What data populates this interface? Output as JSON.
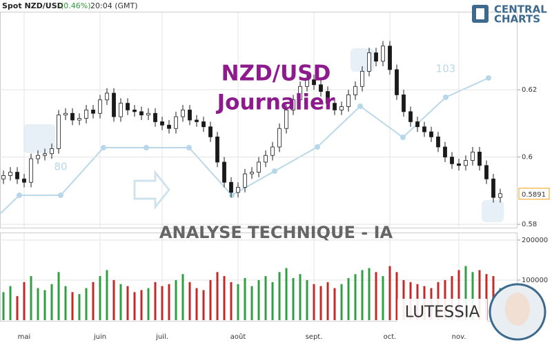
{
  "header": {
    "symbol": "Spot NZD/USD",
    "change": "(0.46%)",
    "time": "20:04 (GMT)"
  },
  "logo": {
    "line1": "CENTRAL",
    "line2": "CHARTS"
  },
  "banner": "ANALYSE TECHNIQUE - IA",
  "brand": "LUTESSIA",
  "watermark": {
    "labels": [
      "80",
      "103"
    ]
  },
  "chart_data": [
    {
      "type": "candlestick",
      "title": "NZD/USD",
      "subtitle": "Journalier",
      "open": [
        0.5935,
        0.5945,
        0.5955,
        0.5935,
        0.5925,
        0.5995,
        0.6005,
        0.601,
        0.6025,
        0.6125,
        0.613,
        0.611,
        0.6115,
        0.614,
        0.613,
        0.617,
        0.619,
        0.612,
        0.616,
        0.614,
        0.6135,
        0.6125,
        0.613,
        0.6105,
        0.6095,
        0.6085,
        0.612,
        0.614,
        0.611,
        0.6105,
        0.609,
        0.606,
        0.5985,
        0.5925,
        0.5895,
        0.591,
        0.595,
        0.5955,
        0.5985,
        0.6005,
        0.603,
        0.6085,
        0.614,
        0.617,
        0.621,
        0.623,
        0.6215,
        0.6195,
        0.616,
        0.614,
        0.615,
        0.6185,
        0.621,
        0.6255,
        0.631,
        0.6285,
        0.633,
        0.626,
        0.6185,
        0.6135,
        0.6105,
        0.609,
        0.6075,
        0.606,
        0.603,
        0.6,
        0.598,
        0.5975,
        0.599,
        0.6015,
        0.5975,
        0.5935,
        0.588
      ],
      "high": [
        0.596,
        0.597,
        0.597,
        0.595,
        0.601,
        0.602,
        0.6025,
        0.604,
        0.614,
        0.6145,
        0.6145,
        0.613,
        0.6155,
        0.6155,
        0.6185,
        0.6205,
        0.6205,
        0.6175,
        0.6175,
        0.6155,
        0.615,
        0.6145,
        0.6145,
        0.612,
        0.611,
        0.6135,
        0.6155,
        0.6155,
        0.6125,
        0.612,
        0.6105,
        0.6075,
        0.6,
        0.594,
        0.5925,
        0.5965,
        0.597,
        0.6,
        0.602,
        0.6045,
        0.61,
        0.6155,
        0.6185,
        0.6225,
        0.6245,
        0.6245,
        0.623,
        0.621,
        0.6175,
        0.6165,
        0.62,
        0.6225,
        0.627,
        0.6325,
        0.6325,
        0.6345,
        0.6345,
        0.6275,
        0.62,
        0.615,
        0.612,
        0.6105,
        0.609,
        0.6075,
        0.6045,
        0.6015,
        0.5995,
        0.6005,
        0.603,
        0.603,
        0.599,
        0.595,
        0.5906
      ],
      "low": [
        0.592,
        0.593,
        0.592,
        0.591,
        0.591,
        0.598,
        0.599,
        0.5995,
        0.601,
        0.611,
        0.6095,
        0.6095,
        0.61,
        0.6115,
        0.6115,
        0.6155,
        0.6105,
        0.6105,
        0.6125,
        0.612,
        0.611,
        0.611,
        0.609,
        0.608,
        0.607,
        0.607,
        0.6105,
        0.6095,
        0.609,
        0.6075,
        0.6045,
        0.597,
        0.591,
        0.588,
        0.588,
        0.5895,
        0.5935,
        0.594,
        0.597,
        0.599,
        0.6015,
        0.607,
        0.6125,
        0.6155,
        0.6195,
        0.62,
        0.618,
        0.6145,
        0.6125,
        0.6125,
        0.6135,
        0.617,
        0.6195,
        0.624,
        0.627,
        0.627,
        0.6245,
        0.617,
        0.612,
        0.609,
        0.6075,
        0.606,
        0.6045,
        0.6015,
        0.5985,
        0.5965,
        0.596,
        0.596,
        0.5975,
        0.596,
        0.592,
        0.5865,
        0.5865
      ],
      "close": [
        0.5945,
        0.5955,
        0.5935,
        0.5925,
        0.5995,
        0.6005,
        0.601,
        0.6025,
        0.6125,
        0.613,
        0.611,
        0.6115,
        0.614,
        0.613,
        0.617,
        0.619,
        0.612,
        0.616,
        0.614,
        0.6135,
        0.6125,
        0.613,
        0.6105,
        0.6095,
        0.6085,
        0.612,
        0.614,
        0.611,
        0.6105,
        0.609,
        0.606,
        0.5985,
        0.5925,
        0.5895,
        0.591,
        0.595,
        0.5955,
        0.5985,
        0.6005,
        0.603,
        0.6085,
        0.614,
        0.617,
        0.621,
        0.623,
        0.6215,
        0.6195,
        0.616,
        0.614,
        0.615,
        0.6185,
        0.621,
        0.6255,
        0.631,
        0.6285,
        0.633,
        0.626,
        0.6185,
        0.6135,
        0.6105,
        0.609,
        0.6075,
        0.606,
        0.603,
        0.6,
        0.598,
        0.5975,
        0.599,
        0.6015,
        0.5975,
        0.5935,
        0.588,
        0.5891
      ],
      "up_color": "#ffffff",
      "down_color": "#1a1a1a",
      "wick_color": "#1a1a1a",
      "last_price_color": "#f39c12",
      "ylim": [
        0.579,
        0.643
      ],
      "yticks": [
        0.58,
        0.6,
        0.62
      ],
      "grid": true
    },
    {
      "type": "bar",
      "categories": [
        null,
        null,
        null,
        "mai",
        null,
        null,
        null,
        null,
        null,
        null,
        null,
        null,
        null,
        null,
        "juin",
        null,
        null,
        null,
        null,
        null,
        null,
        null,
        null,
        "juil.",
        null,
        null,
        null,
        null,
        null,
        null,
        null,
        null,
        null,
        null,
        "août",
        null,
        null,
        null,
        null,
        null,
        null,
        null,
        null,
        null,
        null,
        "sept.",
        null,
        null,
        null,
        null,
        null,
        null,
        null,
        null,
        null,
        null,
        "oct.",
        null,
        null,
        null,
        null,
        null,
        null,
        null,
        null,
        null,
        "nov.",
        null,
        null,
        null,
        null,
        null,
        null
      ],
      "values": [
        70000,
        85000,
        60000,
        95000,
        110000,
        80000,
        75000,
        90000,
        120000,
        85000,
        70000,
        65000,
        80000,
        95000,
        110000,
        125000,
        100000,
        90000,
        85000,
        70000,
        75000,
        80000,
        95000,
        85000,
        90000,
        100000,
        115000,
        95000,
        80000,
        75000,
        100000,
        120000,
        110000,
        95000,
        90000,
        105000,
        85000,
        100000,
        110000,
        95000,
        120000,
        130000,
        105000,
        115000,
        100000,
        90000,
        85000,
        95000,
        80000,
        90000,
        105000,
        115000,
        125000,
        130000,
        120000,
        110000,
        135000,
        120000,
        100000,
        95000,
        90000,
        85000,
        80000,
        95000,
        100000,
        110000,
        125000,
        135000,
        120000,
        125000,
        115000,
        110000,
        80000
      ],
      "up_color": "#2ea043",
      "down_color": "#c62828",
      "ylim": [
        0,
        217000
      ],
      "yticks": [
        100000,
        200000
      ],
      "grid": true
    }
  ]
}
